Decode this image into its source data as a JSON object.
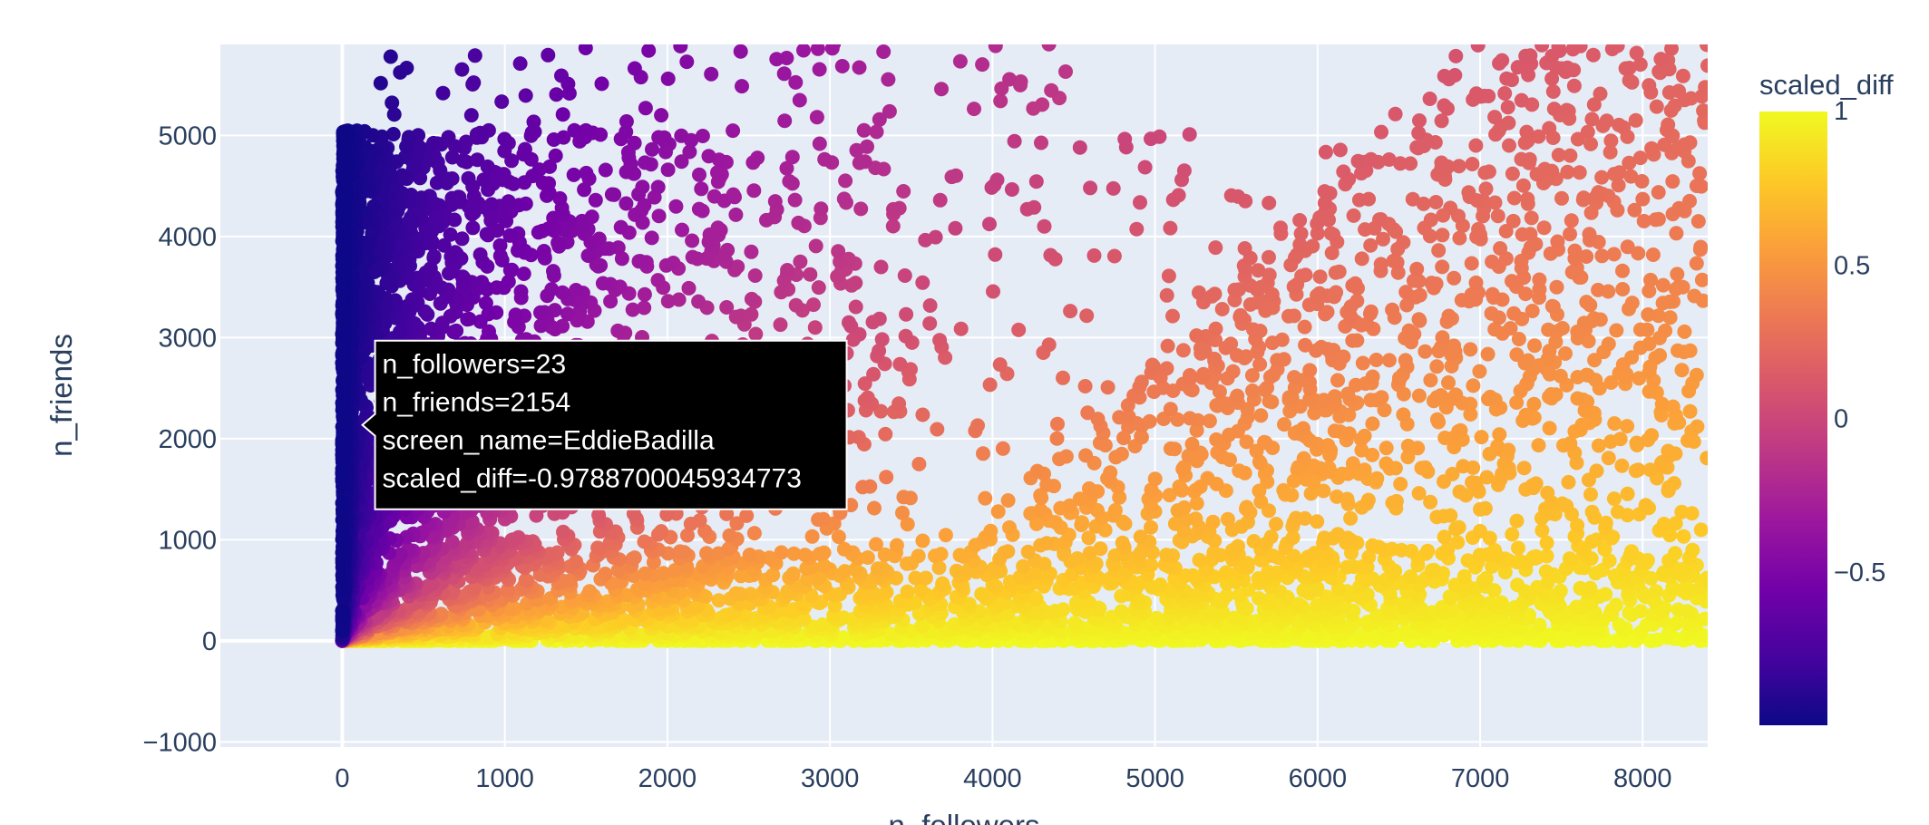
{
  "chart_data": {
    "type": "scatter",
    "title": "",
    "xlabel": "n_followers",
    "ylabel": "n_friends",
    "xlim": [
      -750,
      8400
    ],
    "ylim": [
      -1050,
      5900
    ],
    "x_ticks": [
      0,
      1000,
      2000,
      3000,
      4000,
      5000,
      6000,
      7000,
      8000
    ],
    "x_tick_labels": [
      "0",
      "1000",
      "2000",
      "3000",
      "4000",
      "5000",
      "6000",
      "7000",
      "8000"
    ],
    "y_ticks": [
      -1000,
      0,
      1000,
      2000,
      3000,
      4000,
      5000
    ],
    "y_tick_labels": [
      "−1000",
      "0",
      "1000",
      "2000",
      "3000",
      "4000",
      "5000"
    ],
    "grid": true,
    "color_variable": "scaled_diff",
    "colorbar": {
      "title": "scaled_diff",
      "range": [
        -1,
        1
      ],
      "ticks": [
        1,
        0.5,
        0,
        -0.5
      ],
      "tick_labels": [
        "1",
        "0.5",
        "0",
        "−0.5"
      ],
      "colorscale": [
        "#0d0887",
        "#46039f",
        "#7201a8",
        "#9c179e",
        "#bd3786",
        "#d8576b",
        "#ed7953",
        "#fb9f3a",
        "#fdca26",
        "#f0f921"
      ]
    },
    "hover": {
      "lines": [
        "n_followers=23",
        "n_friends=2154",
        "screen_name=EddieBadilla",
        "scaled_diff=-0.9788700045934773"
      ],
      "x": 23,
      "y": 2154
    },
    "point_cloud": {
      "description_of_density": "dense wedge from origin; friends capped near 5050 for followers under ~4600; sparse scatter above cap and beyond 4000 followers",
      "friend_cap": 5050,
      "max_friends_shown": 5900
    }
  }
}
